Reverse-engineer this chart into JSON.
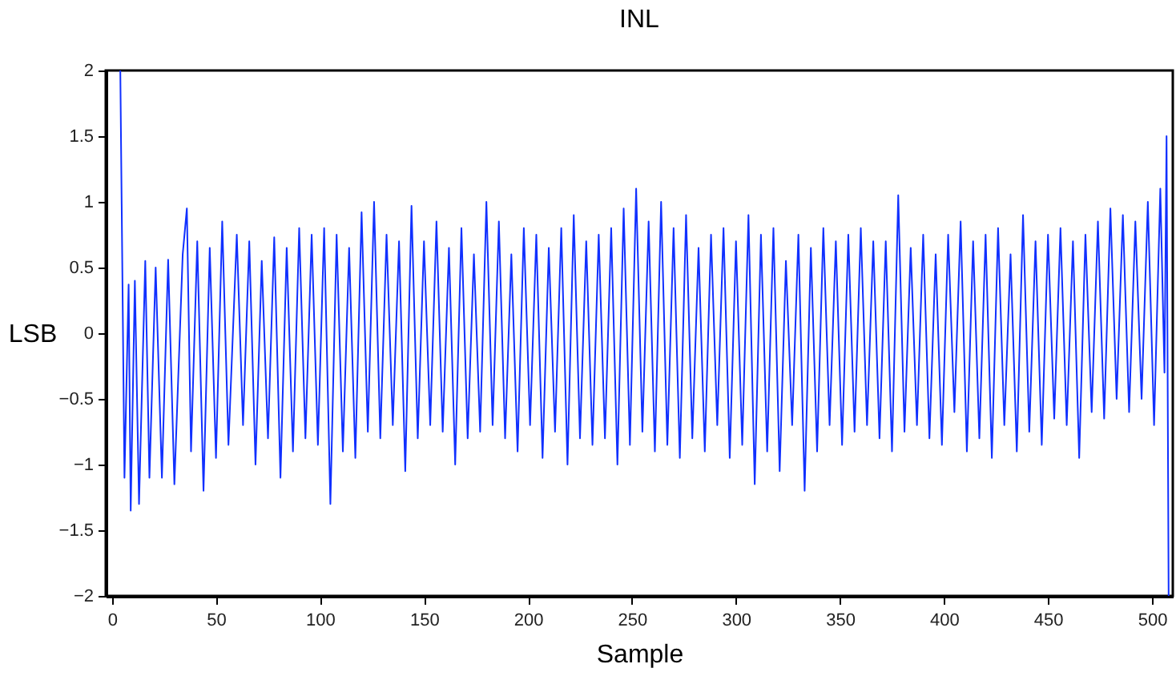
{
  "chart_data": {
    "type": "line",
    "title": "INL",
    "xlabel": "Sample",
    "ylabel": "LSB",
    "x": [
      4,
      6,
      8,
      9,
      11,
      13,
      16,
      18,
      21,
      24,
      27,
      30,
      34,
      36,
      38,
      41,
      44,
      47,
      50,
      53,
      56,
      60,
      63,
      66,
      69,
      72,
      75,
      78,
      81,
      84,
      87,
      90,
      93,
      96,
      99,
      102,
      105,
      108,
      111,
      114,
      117,
      120,
      123,
      126,
      129,
      132,
      135,
      138,
      141,
      144,
      147,
      150,
      153,
      156,
      159,
      162,
      165,
      168,
      171,
      174,
      177,
      180,
      183,
      186,
      189,
      192,
      195,
      198,
      201,
      204,
      207,
      210,
      213,
      216,
      219,
      222,
      225,
      228,
      231,
      234,
      237,
      240,
      243,
      246,
      249,
      252,
      255,
      258,
      261,
      264,
      267,
      270,
      273,
      276,
      279,
      282,
      285,
      288,
      291,
      294,
      297,
      300,
      303,
      306,
      309,
      312,
      315,
      318,
      321,
      324,
      327,
      330,
      333,
      336,
      339,
      342,
      345,
      348,
      351,
      354,
      357,
      360,
      363,
      366,
      369,
      372,
      375,
      378,
      381,
      384,
      387,
      390,
      393,
      396,
      399,
      402,
      405,
      408,
      411,
      414,
      417,
      420,
      423,
      426,
      429,
      432,
      435,
      438,
      441,
      444,
      447,
      450,
      453,
      456,
      459,
      462,
      465,
      468,
      471,
      474,
      477,
      480,
      483,
      486,
      489,
      492,
      495,
      498,
      501,
      504,
      506,
      507,
      508
    ],
    "series": [
      {
        "color": "#1030ff",
        "values": [
          2.0,
          -1.1,
          0.37,
          -1.35,
          0.4,
          -1.3,
          0.55,
          -1.1,
          0.5,
          -1.1,
          0.56,
          -1.15,
          0.6,
          0.95,
          -0.9,
          0.7,
          -1.2,
          0.65,
          -0.95,
          0.85,
          -0.85,
          0.75,
          -0.7,
          0.7,
          -1.0,
          0.55,
          -0.8,
          0.73,
          -1.1,
          0.65,
          -0.9,
          0.8,
          -0.8,
          0.75,
          -0.85,
          0.8,
          -1.3,
          0.75,
          -0.9,
          0.65,
          -0.95,
          0.92,
          -0.75,
          1.0,
          -0.8,
          0.75,
          -0.7,
          0.7,
          -1.05,
          0.97,
          -0.8,
          0.7,
          -0.7,
          0.85,
          -0.75,
          0.65,
          -1.0,
          0.8,
          -0.8,
          0.6,
          -0.75,
          1.0,
          -0.7,
          0.85,
          -0.8,
          0.6,
          -0.9,
          0.8,
          -0.7,
          0.75,
          -0.95,
          0.65,
          -0.75,
          0.8,
          -1.0,
          0.9,
          -0.8,
          0.7,
          -0.85,
          0.75,
          -0.8,
          0.8,
          -1.0,
          0.95,
          -0.85,
          1.1,
          -0.75,
          0.85,
          -0.9,
          1.0,
          -0.85,
          0.8,
          -0.95,
          0.9,
          -0.8,
          0.65,
          -0.9,
          0.75,
          -0.7,
          0.8,
          -0.95,
          0.7,
          -0.85,
          0.9,
          -1.15,
          0.75,
          -0.9,
          0.8,
          -1.05,
          0.55,
          -0.7,
          0.75,
          -1.2,
          0.65,
          -0.9,
          0.8,
          -0.7,
          0.7,
          -0.85,
          0.75,
          -0.75,
          0.8,
          -0.7,
          0.7,
          -0.8,
          0.7,
          -0.9,
          1.05,
          -0.75,
          0.65,
          -0.7,
          0.75,
          -0.8,
          0.6,
          -0.85,
          0.75,
          -0.6,
          0.85,
          -0.9,
          0.7,
          -0.8,
          0.75,
          -0.95,
          0.8,
          -0.7,
          0.6,
          -0.9,
          0.9,
          -0.75,
          0.7,
          -0.85,
          0.75,
          -0.65,
          0.8,
          -0.7,
          0.7,
          -0.95,
          0.75,
          -0.6,
          0.85,
          -0.65,
          0.95,
          -0.5,
          0.9,
          -0.6,
          0.85,
          -0.5,
          1.0,
          -0.7,
          1.1,
          -0.3,
          1.5,
          -2.0
        ]
      }
    ],
    "xlim": [
      -3,
      510
    ],
    "ylim": [
      -2,
      2
    ],
    "xticks": [
      0,
      50,
      100,
      150,
      200,
      250,
      300,
      350,
      400,
      450,
      500
    ],
    "yticks": [
      -2,
      -1.5,
      -1,
      -0.5,
      0,
      0.5,
      1,
      1.5,
      2
    ]
  }
}
